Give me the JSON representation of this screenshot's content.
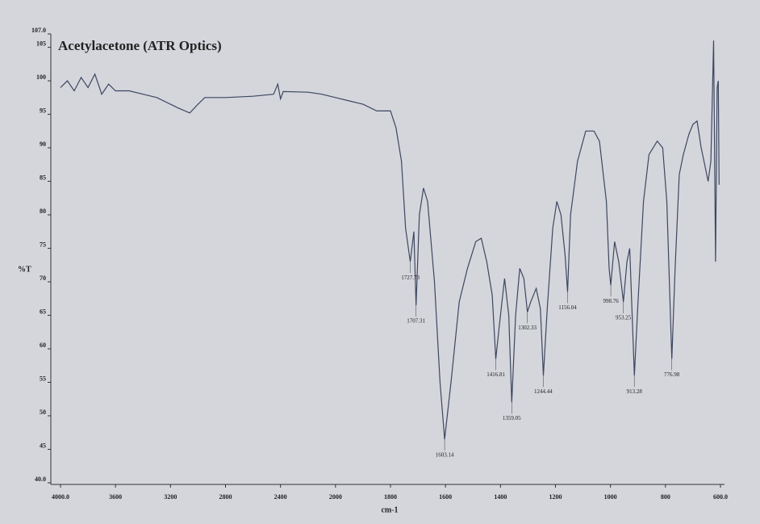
{
  "chart_data": {
    "type": "line",
    "title": "Acetylacetone (ATR Optics)",
    "ylabel": "%T",
    "xlabel": "cm-1",
    "x_reversed": true,
    "xlim": [
      4000,
      600
    ],
    "ylim": [
      40,
      107
    ],
    "xticks": [
      {
        "value": 4000,
        "label": "4000.0"
      },
      3600,
      3200,
      2800,
      2400,
      2000,
      1800,
      1600,
      1400,
      1200,
      1000,
      800,
      {
        "value": 600,
        "label": "600.0"
      }
    ],
    "yticks": [
      {
        "value": 40,
        "label": "40.0"
      },
      45,
      50,
      55,
      60,
      65,
      70,
      75,
      80,
      85,
      90,
      95,
      100,
      105,
      {
        "value": 107,
        "label": "107.0"
      }
    ],
    "series": [
      {
        "name": "Acetylacetone",
        "color": "#3e4760",
        "x": [
          4000,
          3950,
          3900,
          3850,
          3800,
          3750,
          3700,
          3650,
          3600,
          3500,
          3400,
          3300,
          3200,
          3150,
          3060,
          3000,
          2950,
          2800,
          2600,
          2450,
          2420,
          2400,
          2380,
          2200,
          2100,
          2000,
          1950,
          1900,
          1850,
          1800,
          1780,
          1760,
          1745,
          1728,
          1715,
          1707,
          1695,
          1680,
          1665,
          1640,
          1620,
          1603,
          1580,
          1550,
          1520,
          1490,
          1470,
          1450,
          1430,
          1417,
          1400,
          1385,
          1370,
          1359,
          1345,
          1330,
          1315,
          1302,
          1290,
          1270,
          1255,
          1244,
          1230,
          1210,
          1195,
          1180,
          1165,
          1156,
          1145,
          1120,
          1090,
          1060,
          1040,
          1015,
          1005,
          999,
          985,
          970,
          953,
          940,
          930,
          913,
          900,
          880,
          860,
          830,
          810,
          795,
          777,
          765,
          750,
          735,
          715,
          700,
          685,
          670,
          655,
          645,
          635,
          625,
          618,
          612,
          608,
          605
        ],
        "values": [
          99,
          100,
          98.5,
          100.5,
          99,
          101,
          98,
          99.5,
          98.5,
          98.5,
          98,
          97.5,
          96.5,
          96,
          95.2,
          96.5,
          97.5,
          97.5,
          97.7,
          98,
          99.5,
          97.3,
          98.4,
          98.3,
          98,
          97.5,
          97,
          96.5,
          95.5,
          95.5,
          93,
          88,
          78,
          73,
          77.5,
          66.5,
          80,
          84,
          82,
          70,
          55,
          46.5,
          55,
          67,
          72,
          76,
          76.5,
          73,
          68,
          58.5,
          65,
          70.5,
          65,
          52,
          65,
          72,
          70.5,
          65.5,
          67,
          69,
          66,
          56,
          66,
          78,
          82,
          80,
          74,
          68.5,
          80,
          88,
          92.5,
          92.5,
          91,
          82,
          72,
          69.5,
          76,
          73,
          67,
          73,
          75,
          56,
          67,
          82,
          89,
          91,
          90,
          82,
          58.5,
          72,
          86,
          89,
          92,
          93.5,
          94,
          90,
          87,
          85,
          88,
          106,
          73,
          99,
          100,
          84.5
        ]
      }
    ],
    "peaks": [
      {
        "x": 1727.73,
        "y": 73
      },
      {
        "x": 1707.31,
        "y": 66.5
      },
      {
        "x": 1603.14,
        "y": 46.5
      },
      {
        "x": 1416.81,
        "y": 58.5
      },
      {
        "x": 1359.05,
        "y": 52
      },
      {
        "x": 1302.33,
        "y": 65.5
      },
      {
        "x": 1244.44,
        "y": 56
      },
      {
        "x": 1156.04,
        "y": 68.5
      },
      {
        "x": 998.76,
        "y": 69.5
      },
      {
        "x": 953.25,
        "y": 67
      },
      {
        "x": 913.28,
        "y": 56
      },
      {
        "x": 776.98,
        "y": 58.5
      }
    ]
  }
}
